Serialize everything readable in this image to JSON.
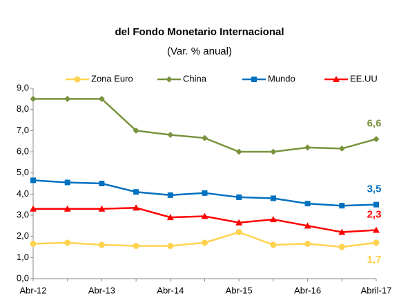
{
  "chart_data": {
    "type": "line",
    "title": "del Fondo Monetario Internacional",
    "subtitle": "(Var. % anual)",
    "categories": [
      "Abr-12",
      null,
      "Abr-13",
      null,
      "Abr-14",
      null,
      "Abr-15",
      null,
      "Abr-16",
      null,
      "Abril-17"
    ],
    "series": [
      {
        "name": "Zona Euro",
        "color": "#ffd34f",
        "marker": "circle",
        "values": [
          1.65,
          1.7,
          1.6,
          1.55,
          1.55,
          1.7,
          2.2,
          1.6,
          1.65,
          1.5,
          1.7
        ],
        "value_labels": [
          null,
          null,
          null,
          null,
          null,
          null,
          null,
          null,
          null,
          null,
          "1,7"
        ]
      },
      {
        "name": "China",
        "color": "#77933c",
        "marker": "diamond",
        "values": [
          8.5,
          8.5,
          8.5,
          7.0,
          6.8,
          6.65,
          6.0,
          6.0,
          6.2,
          6.15,
          6.6
        ],
        "value_labels": [
          null,
          null,
          null,
          null,
          null,
          null,
          null,
          null,
          null,
          null,
          "6,6"
        ]
      },
      {
        "name": "Mundo",
        "color": "#0070c0",
        "marker": "square",
        "values": [
          4.65,
          4.55,
          4.5,
          4.1,
          3.95,
          4.05,
          3.85,
          3.8,
          3.55,
          3.45,
          3.5
        ],
        "value_labels": [
          null,
          null,
          null,
          null,
          null,
          null,
          null,
          null,
          null,
          null,
          "3,5"
        ]
      },
      {
        "name": "EE.UU",
        "color": "#ff0000",
        "marker": "triangle",
        "values": [
          3.3,
          3.3,
          3.3,
          3.35,
          2.9,
          2.95,
          2.65,
          2.8,
          2.5,
          2.2,
          2.3
        ],
        "value_labels": [
          null,
          null,
          null,
          null,
          null,
          null,
          null,
          null,
          null,
          null,
          "2,3"
        ]
      }
    ],
    "ylim": [
      0,
      9
    ],
    "yticks": [
      {
        "value": 0,
        "label": "0,0"
      },
      {
        "value": 1,
        "label": "1,0"
      },
      {
        "value": 2,
        "label": "2,0"
      },
      {
        "value": 3,
        "label": "3,0"
      },
      {
        "value": 4,
        "label": "4,0"
      },
      {
        "value": 5,
        "label": "5,0"
      },
      {
        "value": 6,
        "label": "6,0"
      },
      {
        "value": 7,
        "label": "7,0"
      },
      {
        "value": 8,
        "label": "8,0"
      },
      {
        "value": 9,
        "label": "9,0"
      }
    ],
    "grid": false,
    "legend": "top"
  }
}
